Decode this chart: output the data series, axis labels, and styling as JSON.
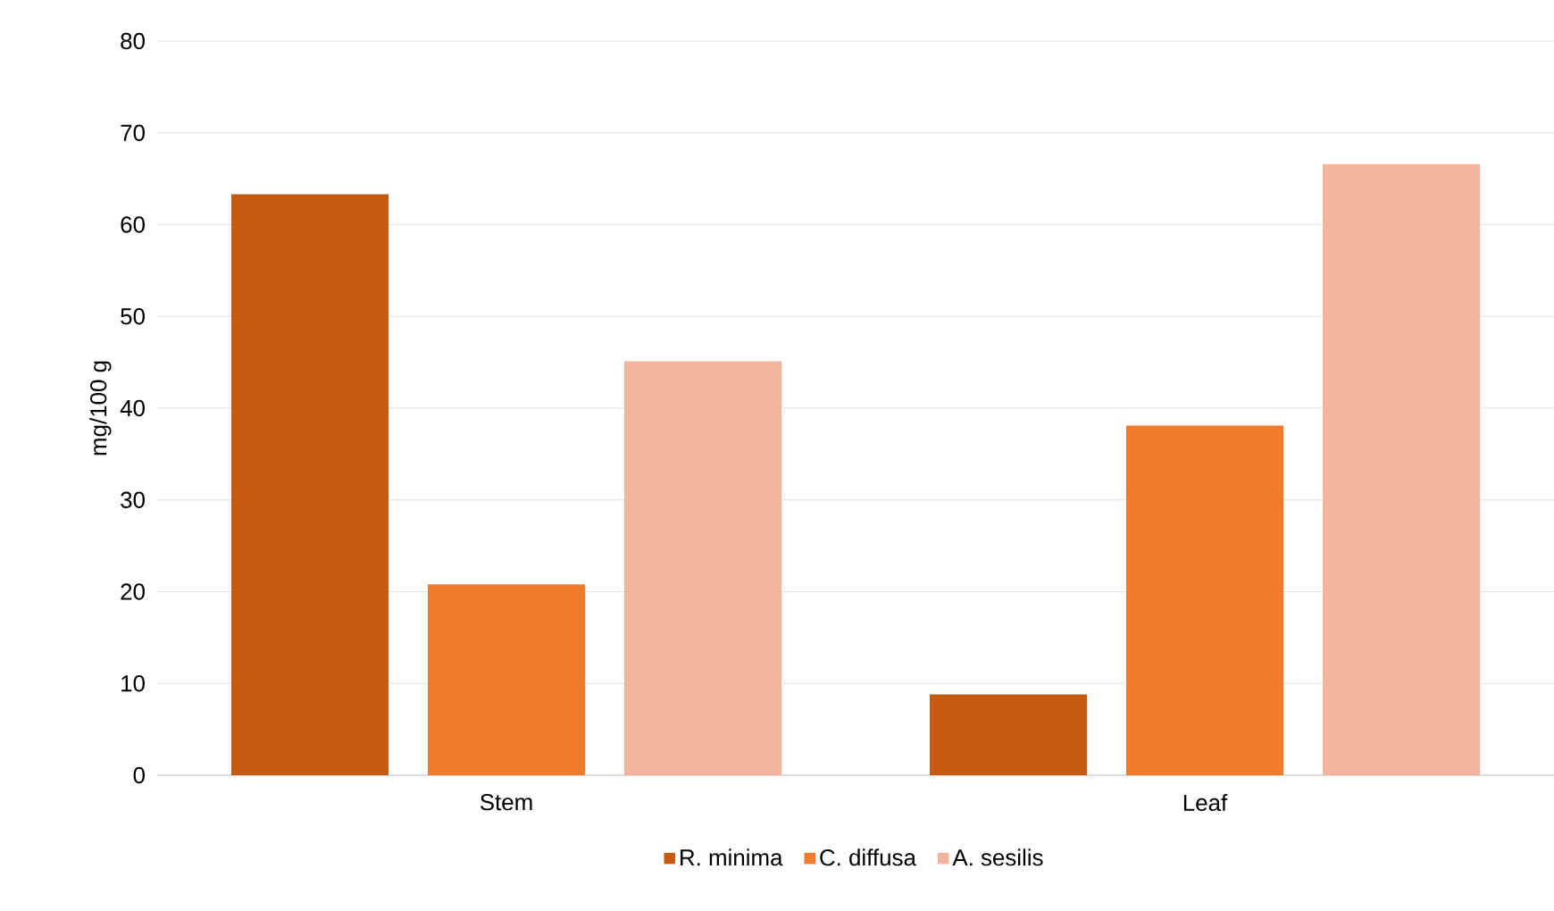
{
  "chart_data": {
    "type": "bar",
    "ylabel": "mg/100 g",
    "categories": [
      "Stem",
      "Leaf"
    ],
    "series": [
      {
        "name": "R. minima",
        "color": "#c55a11",
        "values": [
          63.3,
          8.8
        ]
      },
      {
        "name": "C. diffusa",
        "color": "#f07b2c",
        "values": [
          20.8,
          38.1
        ]
      },
      {
        "name": "A. sesilis",
        "color": "#f2b49c",
        "values": [
          45.1,
          66.6
        ]
      }
    ],
    "ylim": [
      0,
      80
    ],
    "yticks": [
      0,
      10,
      20,
      30,
      40,
      50,
      60,
      70,
      80
    ],
    "grid": "y",
    "legend": "bottom"
  }
}
